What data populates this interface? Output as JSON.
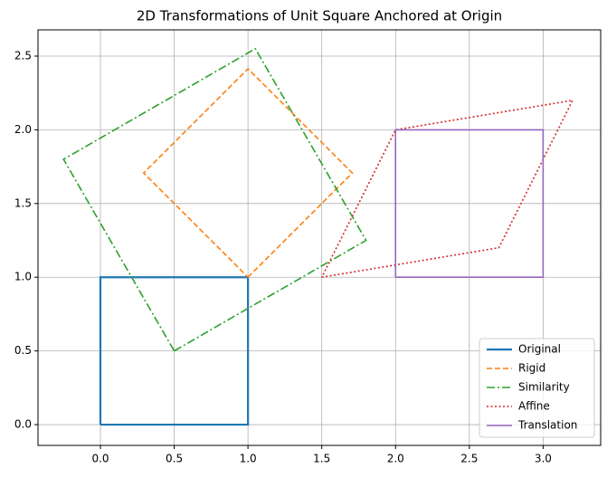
{
  "chart_data": {
    "type": "line",
    "title": "2D Transformations of Unit Square Anchored at Origin",
    "xlim": [
      -0.423,
      3.39
    ],
    "ylim": [
      -0.141,
      2.678
    ],
    "xticks": [
      {
        "value": 0,
        "label": "0.0"
      },
      {
        "value": 0.5,
        "label": "0.5"
      },
      {
        "value": 1,
        "label": "1.0"
      },
      {
        "value": 1.5,
        "label": "1.5"
      },
      {
        "value": 2,
        "label": "2.0"
      },
      {
        "value": 2.5,
        "label": "2.5"
      },
      {
        "value": 3,
        "label": "3.0"
      }
    ],
    "yticks": [
      {
        "value": 0,
        "label": "0.0"
      },
      {
        "value": 0.5,
        "label": "0.5"
      },
      {
        "value": 1,
        "label": "1.0"
      },
      {
        "value": 1.5,
        "label": "1.5"
      },
      {
        "value": 2,
        "label": "2.0"
      },
      {
        "value": 2.5,
        "label": "2.5"
      }
    ],
    "grid": true,
    "legend": "lower right",
    "series": [
      {
        "name": "Original",
        "color": "#1f77b4",
        "linestyle": "solid",
        "linewidth": 2.2,
        "x": [
          0,
          1,
          1,
          0,
          0
        ],
        "values": [
          0,
          0,
          1,
          1,
          0
        ]
      },
      {
        "name": "Rigid",
        "color": "#ff7f0e",
        "linestyle": "dashed",
        "linewidth": 1.6,
        "x": [
          1,
          1.707,
          1,
          0.293,
          1
        ],
        "values": [
          1,
          1.707,
          2.414,
          1.707,
          1
        ]
      },
      {
        "name": "Similarity",
        "color": "#2ca02c",
        "linestyle": "dashdot",
        "linewidth": 1.6,
        "x": [
          0.5,
          1.8,
          1.05,
          -0.25,
          0.5
        ],
        "values": [
          0.5,
          1.25,
          2.55,
          1.8,
          0.5
        ]
      },
      {
        "name": "Affine",
        "color": "#d62728",
        "linestyle": "dotted",
        "linewidth": 1.6,
        "x": [
          1.5,
          2.7,
          3.2,
          2,
          1.5
        ],
        "values": [
          1,
          1.2,
          2.2,
          2,
          1
        ]
      },
      {
        "name": "Translation",
        "color": "#9467bd",
        "linestyle": "solid",
        "linewidth": 1.6,
        "x": [
          2,
          3,
          3,
          2,
          2
        ],
        "values": [
          1,
          1,
          2,
          2,
          1
        ]
      }
    ]
  }
}
